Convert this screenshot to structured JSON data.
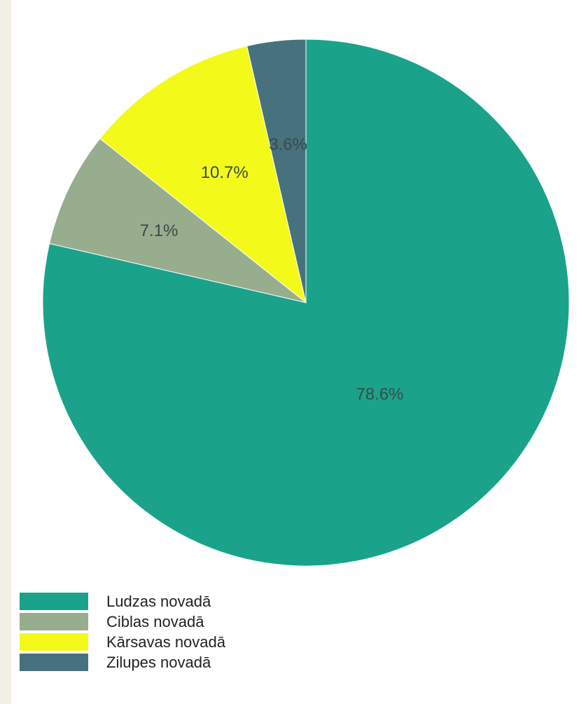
{
  "chart_data": {
    "type": "pie",
    "title": "",
    "series": [
      {
        "name": "Ludzas novadā",
        "value": 78.6,
        "label": "78.6%",
        "color": "#1aa38a"
      },
      {
        "name": "Ciblas novadā",
        "value": 7.1,
        "label": "7.1%",
        "color": "#98ad8d"
      },
      {
        "name": "Kārsavas novadā",
        "value": 10.7,
        "label": "10.7%",
        "color": "#f3fa1a"
      },
      {
        "name": "Zilupes novadā",
        "value": 3.6,
        "label": "3.6%",
        "color": "#47717d"
      }
    ],
    "legend_position": "bottom-left",
    "slice_order": "clockwise-from-top",
    "slice_border_color": "#ffffff"
  }
}
